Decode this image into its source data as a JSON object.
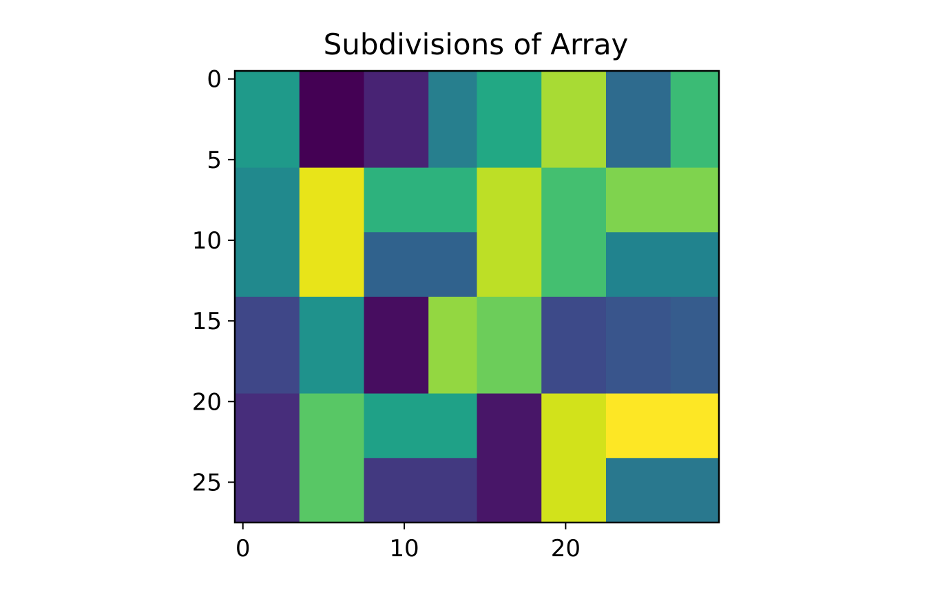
{
  "chart_data": {
    "type": "heatmap",
    "title": "Subdivisions of Array",
    "xlabel": "",
    "ylabel": "",
    "colormap": "viridis",
    "grid": false,
    "x_extent": [
      -0.5,
      29.5
    ],
    "y_extent": [
      27.5,
      -0.5
    ],
    "x_ticks": [
      0,
      10,
      20
    ],
    "y_ticks": [
      0,
      5,
      10,
      15,
      20,
      25
    ],
    "x_tick_labels": [
      "0",
      "10",
      "20"
    ],
    "y_tick_labels": [
      "0",
      "5",
      "10",
      "15",
      "20",
      "25"
    ],
    "rectangles": [
      {
        "x0": -0.5,
        "x1": 3.5,
        "y0": -0.5,
        "y1": 5.5,
        "color": "#1f9a8a"
      },
      {
        "x0": 3.5,
        "x1": 7.5,
        "y0": -0.5,
        "y1": 5.5,
        "color": "#440154"
      },
      {
        "x0": 7.5,
        "x1": 11.5,
        "y0": -0.5,
        "y1": 5.5,
        "color": "#482374"
      },
      {
        "x0": 11.5,
        "x1": 14.5,
        "y0": -0.5,
        "y1": 5.5,
        "color": "#277f8e"
      },
      {
        "x0": 14.5,
        "x1": 18.5,
        "y0": -0.5,
        "y1": 5.5,
        "color": "#22a884"
      },
      {
        "x0": 18.5,
        "x1": 22.5,
        "y0": -0.5,
        "y1": 5.5,
        "color": "#a8db34"
      },
      {
        "x0": 22.5,
        "x1": 26.5,
        "y0": -0.5,
        "y1": 5.5,
        "color": "#2e6b8e"
      },
      {
        "x0": 26.5,
        "x1": 29.5,
        "y0": -0.5,
        "y1": 5.5,
        "color": "#3bbb75"
      },
      {
        "x0": -0.5,
        "x1": 3.5,
        "y0": 5.5,
        "y1": 13.5,
        "color": "#21898d"
      },
      {
        "x0": 3.5,
        "x1": 7.5,
        "y0": 5.5,
        "y1": 13.5,
        "color": "#e8e419"
      },
      {
        "x0": 7.5,
        "x1": 14.5,
        "y0": 5.5,
        "y1": 9.5,
        "color": "#2db27d"
      },
      {
        "x0": 7.5,
        "x1": 14.5,
        "y0": 9.5,
        "y1": 13.5,
        "color": "#30628d"
      },
      {
        "x0": 14.5,
        "x1": 18.5,
        "y0": 5.5,
        "y1": 13.5,
        "color": "#bddf26"
      },
      {
        "x0": 18.5,
        "x1": 22.5,
        "y0": 5.5,
        "y1": 13.5,
        "color": "#44bf70"
      },
      {
        "x0": 22.5,
        "x1": 29.5,
        "y0": 5.5,
        "y1": 9.5,
        "color": "#7fd34e"
      },
      {
        "x0": 22.5,
        "x1": 29.5,
        "y0": 9.5,
        "y1": 13.5,
        "color": "#21838e"
      },
      {
        "x0": -0.5,
        "x1": 3.5,
        "y0": 13.5,
        "y1": 19.5,
        "color": "#3f4788"
      },
      {
        "x0": 3.5,
        "x1": 7.5,
        "y0": 13.5,
        "y1": 19.5,
        "color": "#1f928c"
      },
      {
        "x0": 7.5,
        "x1": 11.5,
        "y0": 13.5,
        "y1": 19.5,
        "color": "#470d60"
      },
      {
        "x0": 11.5,
        "x1": 14.5,
        "y0": 13.5,
        "y1": 19.5,
        "color": "#93d741"
      },
      {
        "x0": 14.5,
        "x1": 18.5,
        "y0": 13.5,
        "y1": 19.5,
        "color": "#6ccd5a"
      },
      {
        "x0": 18.5,
        "x1": 22.5,
        "y0": 13.5,
        "y1": 19.5,
        "color": "#3d4a89"
      },
      {
        "x0": 22.5,
        "x1": 26.5,
        "y0": 13.5,
        "y1": 19.5,
        "color": "#39558c"
      },
      {
        "x0": 26.5,
        "x1": 29.5,
        "y0": 13.5,
        "y1": 19.5,
        "color": "#365c8d"
      },
      {
        "x0": -0.5,
        "x1": 3.5,
        "y0": 19.5,
        "y1": 27.5,
        "color": "#472d7b"
      },
      {
        "x0": 3.5,
        "x1": 7.5,
        "y0": 19.5,
        "y1": 27.5,
        "color": "#58c765"
      },
      {
        "x0": 7.5,
        "x1": 14.5,
        "y0": 19.5,
        "y1": 23.5,
        "color": "#1fa187"
      },
      {
        "x0": 7.5,
        "x1": 14.5,
        "y0": 23.5,
        "y1": 27.5,
        "color": "#423980"
      },
      {
        "x0": 14.5,
        "x1": 18.5,
        "y0": 19.5,
        "y1": 27.5,
        "color": "#481668"
      },
      {
        "x0": 18.5,
        "x1": 22.5,
        "y0": 19.5,
        "y1": 27.5,
        "color": "#d2e21b"
      },
      {
        "x0": 22.5,
        "x1": 29.5,
        "y0": 19.5,
        "y1": 23.5,
        "color": "#fde725"
      },
      {
        "x0": 22.5,
        "x1": 29.5,
        "y0": 23.5,
        "y1": 27.5,
        "color": "#29788e"
      }
    ]
  }
}
